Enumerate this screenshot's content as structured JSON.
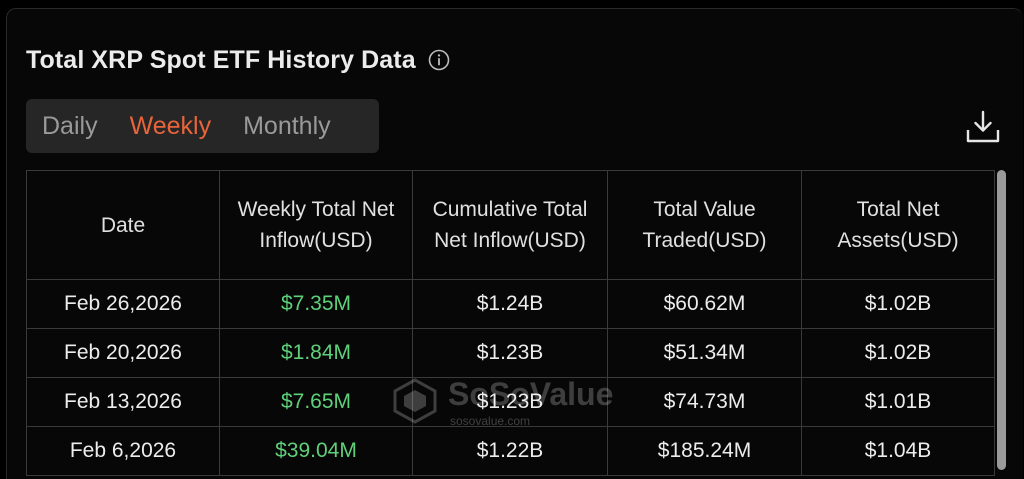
{
  "header": {
    "title": "Total XRP Spot ETF History Data",
    "info_icon": "info-circle-icon"
  },
  "tabs": [
    {
      "label": "Daily",
      "active": false
    },
    {
      "label": "Weekly",
      "active": true
    },
    {
      "label": "Monthly",
      "active": false
    }
  ],
  "download_icon": "download-tray-icon",
  "colors": {
    "accent": "#e8643a",
    "positive": "#5fd07a",
    "background": "#070707"
  },
  "table": {
    "columns": [
      "Date",
      "Weekly Total Net Inflow(USD)",
      "Cumulative Total Net Inflow(USD)",
      "Total Value Traded(USD)",
      "Total Net Assets(USD)"
    ],
    "rows": [
      [
        "Feb 26,2026",
        "$7.35M",
        "$1.24B",
        "$60.62M",
        "$1.02B"
      ],
      [
        "Feb 20,2026",
        "$1.84M",
        "$1.23B",
        "$51.34M",
        "$1.02B"
      ],
      [
        "Feb 13,2026",
        "$7.65M",
        "$1.23B",
        "$74.73M",
        "$1.01B"
      ],
      [
        "Feb 6,2026",
        "$39.04M",
        "$1.22B",
        "$185.24M",
        "$1.04B"
      ]
    ]
  },
  "watermark": {
    "brand": "SoSoValue",
    "url": "sosovalue.com"
  }
}
